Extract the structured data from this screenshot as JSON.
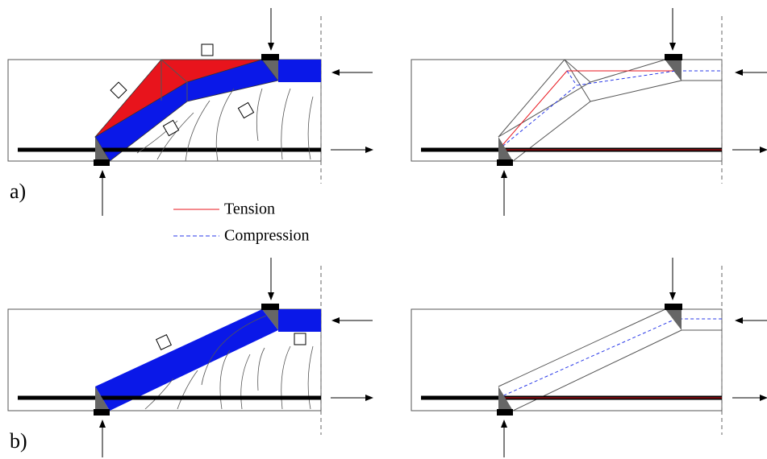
{
  "panels": [
    {
      "label": "a)"
    },
    {
      "label": "b)"
    }
  ],
  "legend": {
    "tension": "Tension",
    "compression": "Compression"
  }
}
